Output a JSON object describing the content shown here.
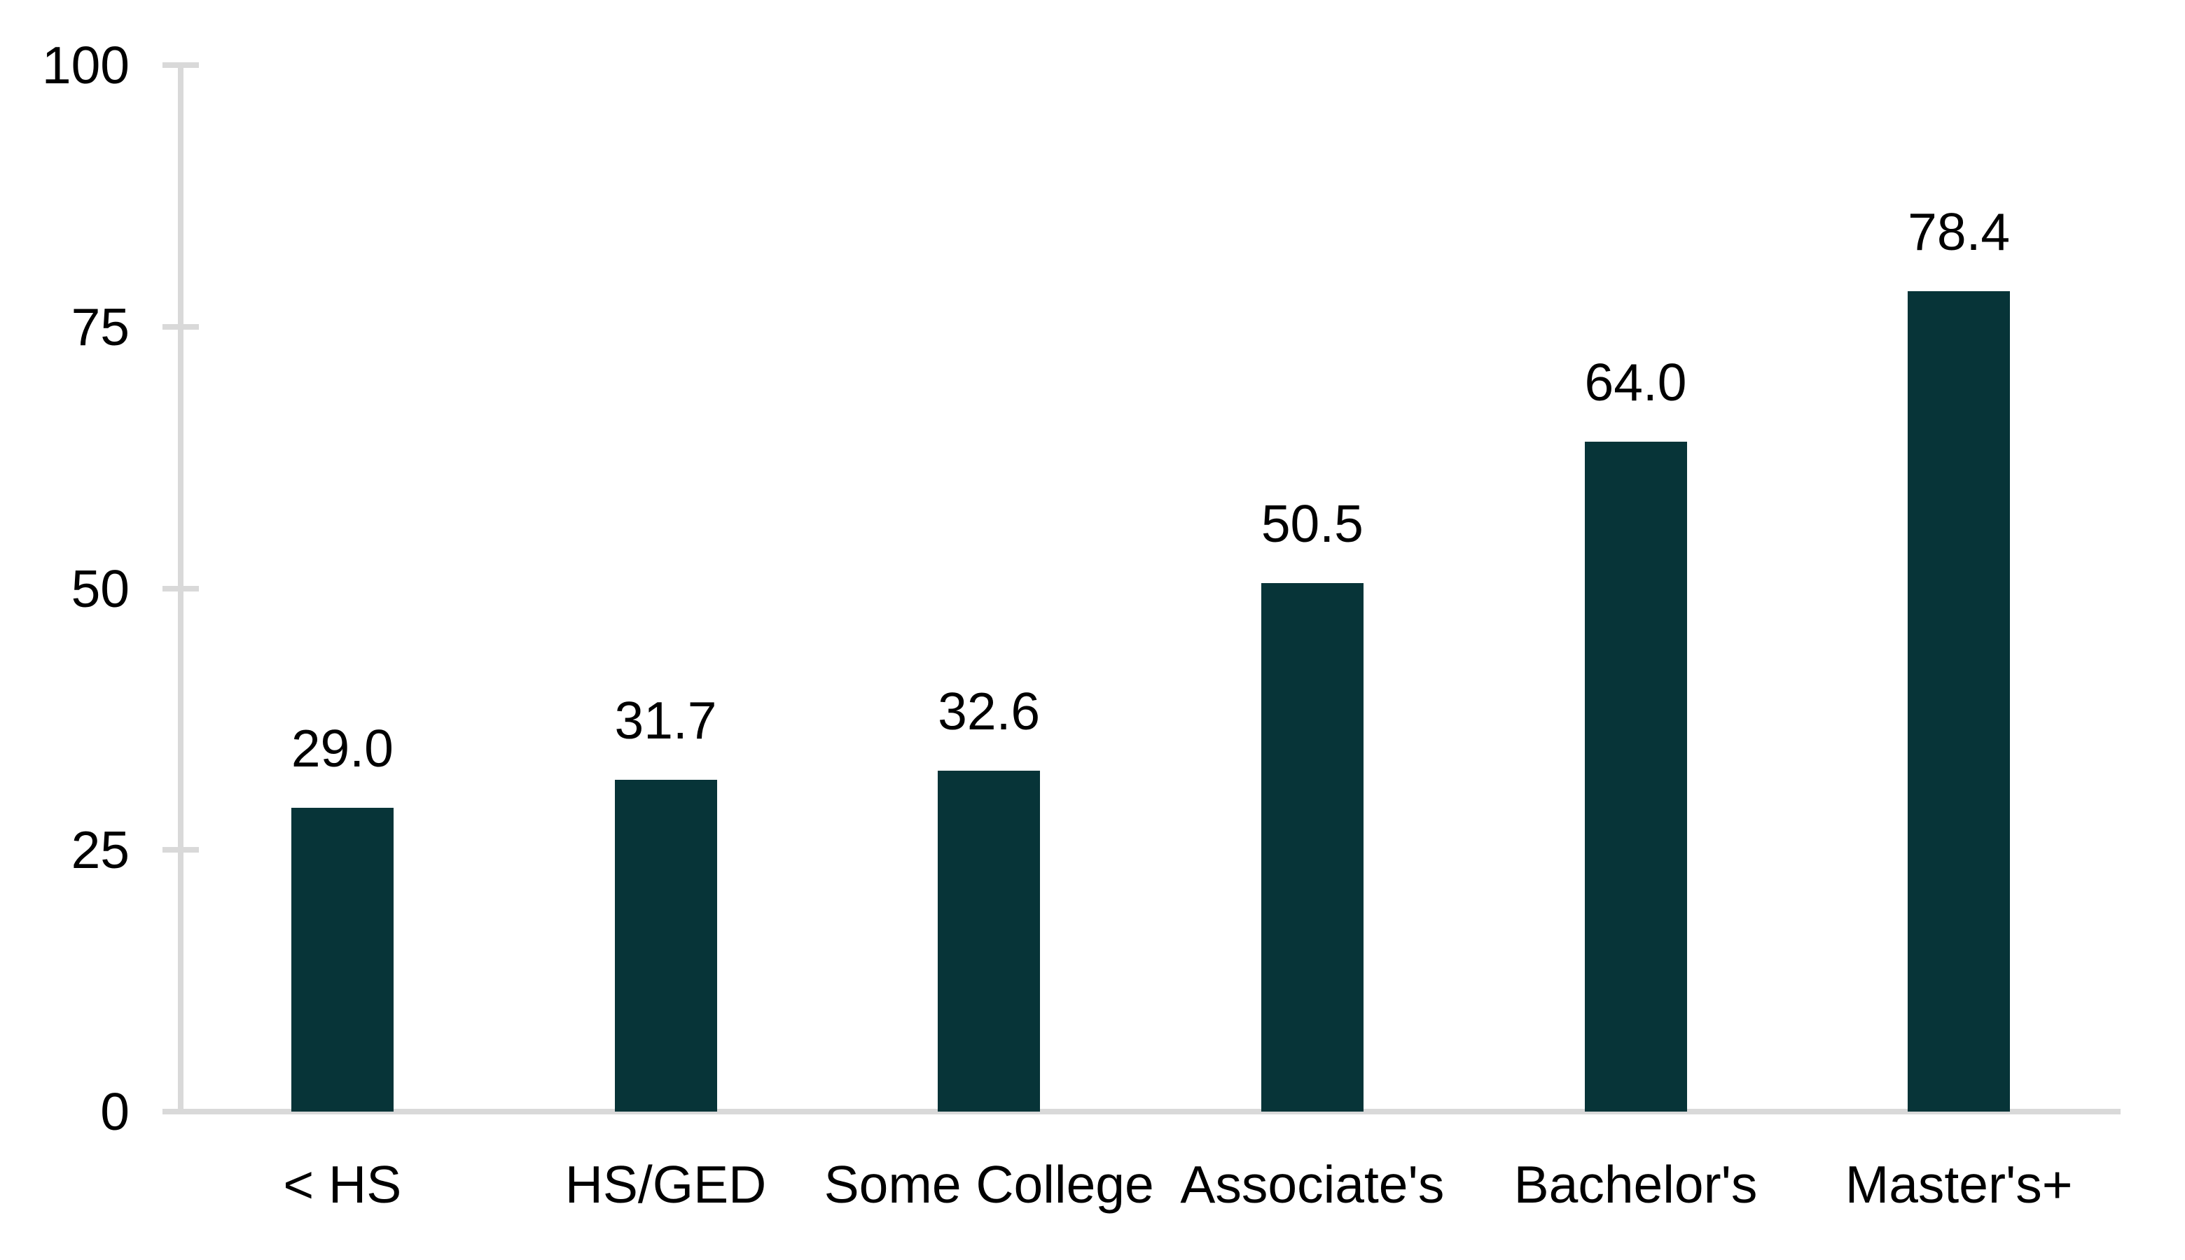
{
  "chart_data": {
    "type": "bar",
    "categories": [
      "< HS",
      "HS/GED",
      "Some College",
      "Associate's",
      "Bachelor's",
      "Master's+"
    ],
    "values": [
      29.0,
      31.7,
      32.6,
      50.5,
      64.0,
      78.4
    ],
    "value_labels": [
      "29.0",
      "31.7",
      "32.6",
      "50.5",
      "64.0",
      "78.4"
    ],
    "title": "",
    "xlabel": "",
    "ylabel": "",
    "ylim": [
      0,
      100
    ],
    "yticks": [
      0,
      25,
      50,
      75,
      100
    ],
    "ytick_labels": [
      "0",
      "25",
      "50",
      "75",
      "100"
    ],
    "grid": false,
    "legend": false,
    "colors": {
      "bar": "#073438",
      "axis": "#D9D9D9",
      "text": "#000000",
      "background": "#FFFFFF"
    }
  }
}
